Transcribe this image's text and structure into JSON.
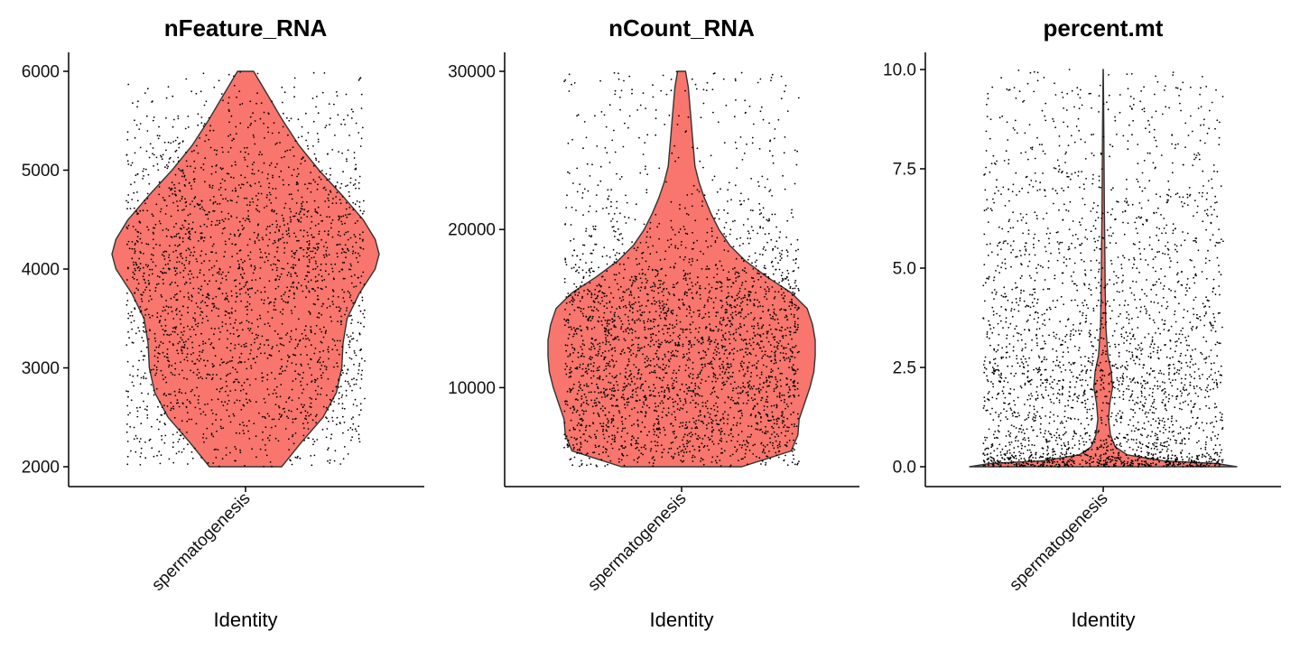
{
  "chart_data": [
    {
      "type": "violin",
      "title": "nFeature_RNA",
      "xlabel": "Identity",
      "categories": [
        "spermatogenesis"
      ],
      "ylim": [
        2000,
        6000
      ],
      "yticks": [
        2000,
        3000,
        4000,
        5000,
        6000
      ],
      "fill_color": "#F8766D",
      "points": {
        "count": 2500,
        "color": "#000000",
        "jitter": true
      },
      "density": [
        [
          2000,
          0.27
        ],
        [
          2250,
          0.42
        ],
        [
          2500,
          0.58
        ],
        [
          2750,
          0.68
        ],
        [
          3000,
          0.72
        ],
        [
          3250,
          0.73
        ],
        [
          3500,
          0.76
        ],
        [
          3750,
          0.85
        ],
        [
          4000,
          0.97
        ],
        [
          4150,
          1.0
        ],
        [
          4300,
          0.97
        ],
        [
          4500,
          0.88
        ],
        [
          4750,
          0.72
        ],
        [
          5000,
          0.55
        ],
        [
          5250,
          0.4
        ],
        [
          5500,
          0.28
        ],
        [
          5750,
          0.17
        ],
        [
          6000,
          0.06
        ]
      ]
    },
    {
      "type": "violin",
      "title": "nCount_RNA",
      "xlabel": "Identity",
      "categories": [
        "spermatogenesis"
      ],
      "ylim": [
        5000,
        30000
      ],
      "yticks": [
        10000,
        20000,
        30000
      ],
      "fill_color": "#F8766D",
      "points": {
        "count": 3000,
        "color": "#000000",
        "jitter": true
      },
      "density": [
        [
          5000,
          0.45
        ],
        [
          6000,
          0.82
        ],
        [
          7000,
          0.87
        ],
        [
          8000,
          0.88
        ],
        [
          9000,
          0.92
        ],
        [
          10000,
          0.96
        ],
        [
          11000,
          0.99
        ],
        [
          12000,
          1.0
        ],
        [
          13000,
          1.0
        ],
        [
          14000,
          0.98
        ],
        [
          15000,
          0.94
        ],
        [
          16000,
          0.82
        ],
        [
          17000,
          0.64
        ],
        [
          18000,
          0.48
        ],
        [
          19000,
          0.36
        ],
        [
          20000,
          0.28
        ],
        [
          21000,
          0.22
        ],
        [
          22000,
          0.17
        ],
        [
          23000,
          0.13
        ],
        [
          24000,
          0.1
        ],
        [
          25000,
          0.09
        ],
        [
          26000,
          0.08
        ],
        [
          27000,
          0.07
        ],
        [
          28000,
          0.06
        ],
        [
          29000,
          0.05
        ],
        [
          30000,
          0.03
        ]
      ]
    },
    {
      "type": "violin",
      "title": "percent.mt",
      "xlabel": "Identity",
      "categories": [
        "spermatogenesis"
      ],
      "ylim": [
        0,
        10
      ],
      "yticks": [
        "0.0",
        "2.5",
        "5.0",
        "7.5",
        "10.0"
      ],
      "fill_color": "#F8766D",
      "points": {
        "count": 2800,
        "color": "#000000",
        "jitter": true
      },
      "density": [
        [
          0.0,
          1.0
        ],
        [
          0.08,
          0.85
        ],
        [
          0.15,
          0.45
        ],
        [
          0.3,
          0.18
        ],
        [
          0.5,
          0.09
        ],
        [
          0.8,
          0.055
        ],
        [
          1.2,
          0.04
        ],
        [
          1.6,
          0.05
        ],
        [
          2.0,
          0.07
        ],
        [
          2.4,
          0.06
        ],
        [
          2.8,
          0.035
        ],
        [
          3.5,
          0.02
        ],
        [
          4.5,
          0.015
        ],
        [
          5.5,
          0.012
        ],
        [
          6.5,
          0.009
        ],
        [
          7.5,
          0.007
        ],
        [
          8.5,
          0.005
        ],
        [
          9.3,
          0.003
        ],
        [
          10.0,
          0.001
        ]
      ]
    }
  ]
}
